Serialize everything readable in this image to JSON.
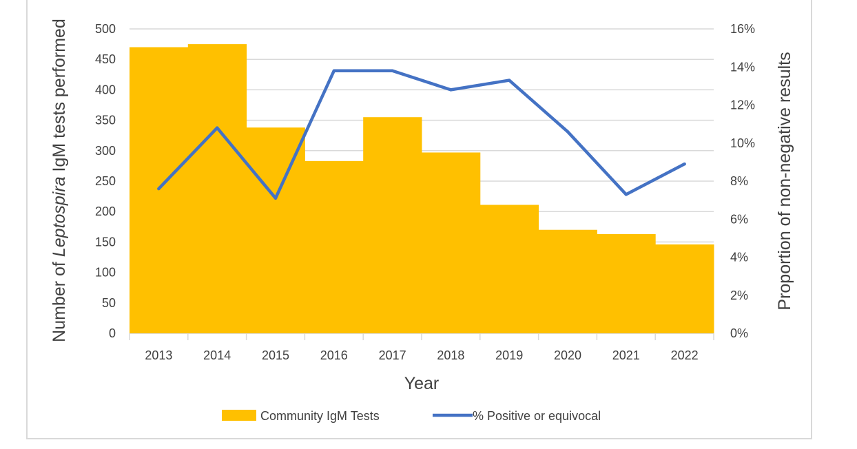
{
  "chart_data": {
    "type": "bar",
    "categories": [
      "2013",
      "2014",
      "2015",
      "2016",
      "2017",
      "2018",
      "2019",
      "2020",
      "2021",
      "2022"
    ],
    "series": [
      {
        "name": "Community IgM Tests",
        "type": "bar",
        "axis": "left",
        "color": "#ffc000",
        "values": [
          470,
          475,
          338,
          283,
          355,
          297,
          211,
          170,
          163,
          146
        ]
      },
      {
        "name": "% Positive or equivocal",
        "type": "line",
        "axis": "right",
        "color": "#4472c4",
        "values": [
          7.6,
          10.8,
          7.1,
          13.8,
          13.8,
          12.8,
          13.3,
          10.6,
          7.3,
          8.9
        ]
      }
    ],
    "xlabel": "Year",
    "ylabel_parts": [
      "Number of ",
      "Leptospira",
      " IgM tests performed"
    ],
    "y2label": "Proportion of non-negative results",
    "ylim": [
      0,
      500
    ],
    "y_ticks": [
      "0",
      "50",
      "100",
      "150",
      "200",
      "250",
      "300",
      "350",
      "400",
      "450",
      "500"
    ],
    "y2lim": [
      0,
      16
    ],
    "y2_ticks": [
      "0%",
      "2%",
      "4%",
      "6%",
      "8%",
      "10%",
      "12%",
      "14%",
      "16%"
    ],
    "grid": true,
    "legend_position": "bottom",
    "colors": {
      "grid": "#d9d9d9",
      "text": "#404040"
    }
  }
}
